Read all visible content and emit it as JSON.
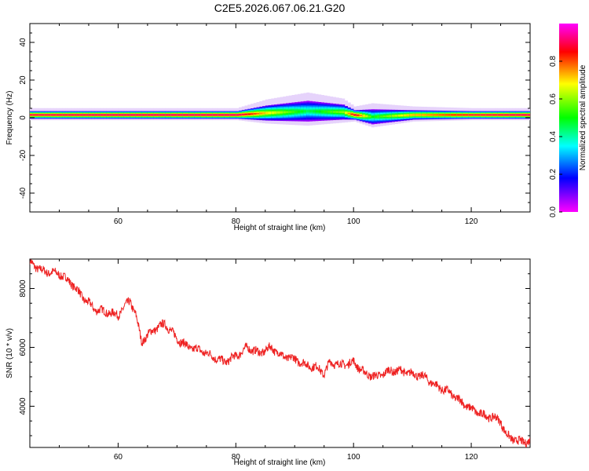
{
  "title": "C2E5.2026.067.06.21.G20",
  "chart_data": [
    {
      "type": "heatmap",
      "name": "spectrogram",
      "xlabel": "Height of straight line (km)",
      "ylabel": "Frequency (Hz)",
      "xlim": [
        45,
        130
      ],
      "ylim": [
        -50,
        50
      ],
      "x_ticks": [
        60,
        80,
        100,
        120
      ],
      "y_ticks": [
        -40,
        -20,
        0,
        20,
        40
      ],
      "colorbar": {
        "label": "Normalized spectral amplitude",
        "range": [
          0,
          1
        ],
        "ticks": [
          "0.0",
          "0.2",
          "0.4",
          "0.6",
          "0.8"
        ],
        "colors": [
          "#ff00ff",
          "#0000ff",
          "#00ffff",
          "#00ff00",
          "#ffff00",
          "#ff0000",
          "#ff00ff"
        ]
      },
      "ridge": {
        "description_points_km": [
          45,
          60,
          80,
          85,
          92,
          98,
          100,
          103,
          110,
          120,
          130
        ],
        "center_freq_hz": [
          1.5,
          1.5,
          1.5,
          2.5,
          3.5,
          3,
          1.5,
          0.5,
          1.5,
          1.5,
          1.5
        ],
        "peak_amplitude": [
          0.92,
          0.95,
          0.95,
          0.7,
          0.45,
          0.6,
          0.9,
          0.5,
          0.75,
          0.9,
          0.95
        ],
        "band_halfwidth_hz": [
          2,
          2,
          2,
          4,
          5.5,
          4,
          2.5,
          4,
          2.5,
          2,
          2
        ]
      }
    },
    {
      "type": "line",
      "name": "snr",
      "xlabel": "Height of straight line (km)",
      "ylabel": "SNR (10 * v/v)",
      "xlim": [
        45,
        130
      ],
      "ylim": [
        2600,
        9000
      ],
      "x_ticks": [
        60,
        80,
        100,
        120
      ],
      "y_ticks": [
        4000,
        6000,
        8000
      ],
      "color": "#ee2222",
      "x": [
        45,
        47,
        50,
        52,
        54,
        56,
        58,
        60,
        62,
        63,
        64,
        65,
        66,
        68,
        70,
        72,
        74,
        76,
        78,
        80,
        82,
        84,
        86,
        88,
        90,
        92,
        94,
        95,
        96,
        98,
        100,
        102,
        104,
        106,
        108,
        110,
        112,
        114,
        116,
        118,
        120,
        122,
        124,
        125,
        126,
        128,
        130
      ],
      "y": [
        8900,
        8600,
        8500,
        8200,
        7700,
        7300,
        7200,
        7100,
        7600,
        7100,
        6200,
        6400,
        6600,
        6800,
        6300,
        6000,
        5900,
        5700,
        5500,
        5700,
        6000,
        5800,
        6000,
        5700,
        5600,
        5400,
        5300,
        5100,
        5500,
        5400,
        5500,
        5100,
        5000,
        5200,
        5200,
        5100,
        5000,
        4700,
        4500,
        4200,
        3900,
        3700,
        3600,
        3500,
        3000,
        2800,
        2800
      ]
    }
  ]
}
